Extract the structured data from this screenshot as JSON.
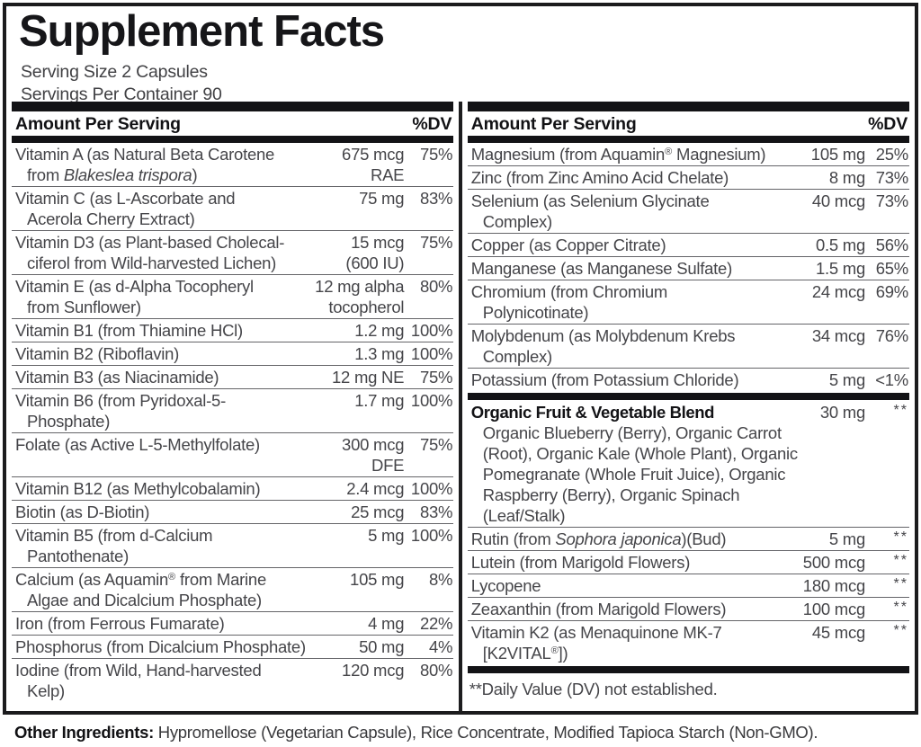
{
  "title": "Supplement Facts",
  "serving": {
    "size": "Serving Size 2 Capsules",
    "per_container": "Servings Per Container 90"
  },
  "header": {
    "amount_label": "Amount Per Serving",
    "dv_label": "%DV"
  },
  "colors": {
    "bar": "#131316",
    "border": "#1b1b1d",
    "text": "#454549",
    "hairline": "#646468"
  },
  "columns": {
    "left": [
      {
        "type": "row",
        "name": [
          "Vitamin A (as Natural Beta Carotene",
          "from {i}Blakeslea trispora{/i})"
        ],
        "amount": [
          "675 mcg",
          "RAE"
        ],
        "dv": "75%"
      },
      {
        "type": "row",
        "name": [
          "Vitamin C (as L-Ascorbate and",
          "Acerola Cherry Extract)"
        ],
        "amount": [
          "75 mg"
        ],
        "dv": "83%"
      },
      {
        "type": "row",
        "name": [
          "Vitamin D3 (as Plant-based Cholecal-",
          "ciferol from Wild-harvested Lichen)"
        ],
        "amount": [
          "15 mcg",
          "(600 IU)"
        ],
        "dv": "75%"
      },
      {
        "type": "row",
        "name": [
          "Vitamin E (as d-Alpha Tocopheryl",
          "from Sunflower)"
        ],
        "amount": [
          "12 mg alpha",
          "tocopherol"
        ],
        "dv": "80%"
      },
      {
        "type": "row",
        "name": [
          "Vitamin B1 (from Thiamine HCl)"
        ],
        "amount": [
          "1.2 mg"
        ],
        "dv": "100%"
      },
      {
        "type": "row",
        "name": [
          "Vitamin B2 (Riboflavin)"
        ],
        "amount": [
          "1.3 mg"
        ],
        "dv": "100%"
      },
      {
        "type": "row",
        "name": [
          "Vitamin B3 (as Niacinamide)"
        ],
        "amount": [
          "12 mg NE"
        ],
        "dv": "75%"
      },
      {
        "type": "row",
        "name": [
          "Vitamin B6 (from Pyridoxal-5-",
          "Phosphate)"
        ],
        "amount": [
          "1.7 mg"
        ],
        "dv": "100%"
      },
      {
        "type": "row",
        "name": [
          "Folate (as Active L-5-Methylfolate)"
        ],
        "amount": [
          "300 mcg",
          "DFE"
        ],
        "dv": "75%"
      },
      {
        "type": "row",
        "name": [
          "Vitamin B12 (as Methylcobalamin)"
        ],
        "amount": [
          "2.4 mcg"
        ],
        "dv": "100%"
      },
      {
        "type": "row",
        "name": [
          "Biotin (as D-Biotin)"
        ],
        "amount": [
          "25 mcg"
        ],
        "dv": "83%"
      },
      {
        "type": "row",
        "name": [
          "Vitamin B5 (from d-Calcium",
          "Pantothenate)"
        ],
        "amount": [
          "5 mg"
        ],
        "dv": "100%"
      },
      {
        "type": "row",
        "name": [
          "Calcium (as Aquamin{R} from Marine",
          "Algae and Dicalcium Phosphate)"
        ],
        "amount": [
          "105 mg"
        ],
        "dv": "8%"
      },
      {
        "type": "row",
        "name": [
          "Iron (from Ferrous Fumarate)"
        ],
        "amount": [
          "4 mg"
        ],
        "dv": "22%"
      },
      {
        "type": "row",
        "name": [
          "Phosphorus (from Dicalcium Phosphate)"
        ],
        "amount": [
          "50 mg"
        ],
        "dv": "4%"
      },
      {
        "type": "row",
        "name": [
          "Iodine (from Wild, Hand-harvested",
          "Kelp)"
        ],
        "amount": [
          "120 mcg"
        ],
        "dv": "80%"
      }
    ],
    "right": [
      {
        "type": "row",
        "name": [
          "Magnesium (from Aquamin{R} Magnesium)"
        ],
        "amount": [
          "105 mg"
        ],
        "dv": "25%"
      },
      {
        "type": "row",
        "name": [
          "Zinc (from Zinc Amino Acid Chelate)"
        ],
        "amount": [
          "8 mg"
        ],
        "dv": "73%"
      },
      {
        "type": "row",
        "name": [
          "Selenium (as Selenium Glycinate",
          "Complex)"
        ],
        "amount": [
          "40 mcg"
        ],
        "dv": "73%"
      },
      {
        "type": "row",
        "name": [
          "Copper (as Copper Citrate)"
        ],
        "amount": [
          "0.5 mg"
        ],
        "dv": "56%"
      },
      {
        "type": "row",
        "name": [
          "Manganese (as Manganese Sulfate)"
        ],
        "amount": [
          "1.5 mg"
        ],
        "dv": "65%"
      },
      {
        "type": "row",
        "name": [
          "Chromium (from Chromium",
          "Polynicotinate)"
        ],
        "amount": [
          "24 mcg"
        ],
        "dv": "69%"
      },
      {
        "type": "row",
        "name": [
          "Molybdenum (as Molybdenum Krebs",
          "Complex)"
        ],
        "amount": [
          "34 mcg"
        ],
        "dv": "76%"
      },
      {
        "type": "row",
        "name": [
          "Potassium (from Potassium Chloride)"
        ],
        "amount": [
          "5 mg"
        ],
        "dv": "<1%"
      },
      {
        "type": "bar"
      },
      {
        "type": "row",
        "bold": true,
        "name": [
          "Organic Fruit & Vegetable Blend"
        ],
        "amount": [
          "30 mg"
        ],
        "dv": "**",
        "note": [
          "Organic Blueberry (Berry), Organic Carrot",
          "(Root), Organic Kale (Whole Plant), Organic",
          "Pomegranate (Whole Fruit Juice), Organic",
          "Raspberry (Berry), Organic Spinach",
          "(Leaf/Stalk)"
        ]
      },
      {
        "type": "row",
        "name": [
          "Rutin (from {i}Sophora japonica{/i})(Bud)"
        ],
        "amount": [
          "5 mg"
        ],
        "dv": "**"
      },
      {
        "type": "row",
        "name": [
          "Lutein (from Marigold Flowers)"
        ],
        "amount": [
          "500 mcg"
        ],
        "dv": "**"
      },
      {
        "type": "row",
        "name": [
          "Lycopene"
        ],
        "amount": [
          "180 mcg"
        ],
        "dv": "**"
      },
      {
        "type": "row",
        "name": [
          "Zeaxanthin (from Marigold Flowers)"
        ],
        "amount": [
          "100 mcg"
        ],
        "dv": "**"
      },
      {
        "type": "row",
        "name": [
          "Vitamin K2 (as Menaquinone MK-7",
          "[K2VITAL{R}])"
        ],
        "amount": [
          "45 mcg"
        ],
        "dv": "**"
      },
      {
        "type": "bar"
      },
      {
        "type": "footnote",
        "text": "**Daily Value (DV) not established."
      }
    ]
  },
  "other_ingredients": {
    "label": "Other Ingredients:",
    "text": " Hypromellose (Vegetarian Capsule), Rice Concentrate, Modified Tapioca Starch (Non-GMO)."
  }
}
